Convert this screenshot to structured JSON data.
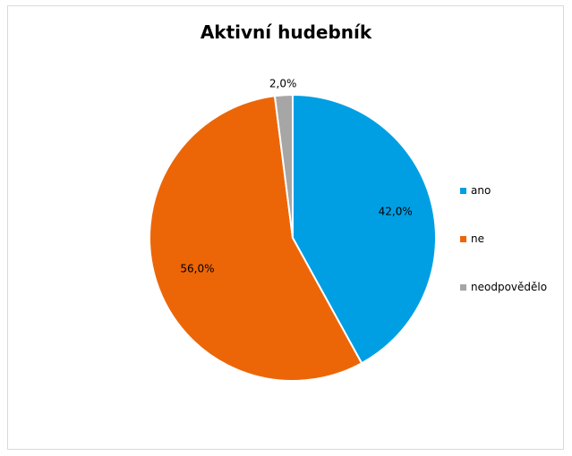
{
  "chart_data": {
    "type": "pie",
    "title": "Aktivní hudebník",
    "categories": [
      "ano",
      "ne",
      "neodpovědělo"
    ],
    "values": [
      42.0,
      56.0,
      2.0
    ],
    "data_labels": [
      "42,0%",
      "56,0%",
      "2,0%"
    ],
    "colors": [
      "#009fe3",
      "#ec6608",
      "#a6a6a6"
    ],
    "legend_position": "right"
  }
}
